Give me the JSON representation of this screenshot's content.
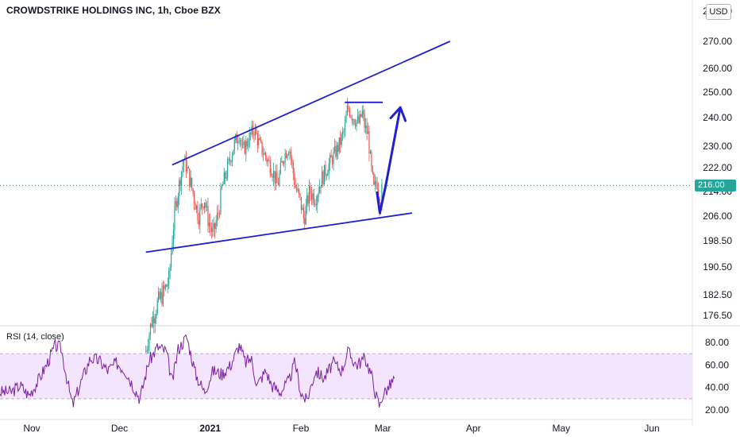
{
  "header": {
    "title": "CROWDSTRIKE HOLDINGS INC, 1h, Cboe BZX",
    "currency": "USD"
  },
  "price_tag": "216.00",
  "rsi": {
    "label": "RSI (14, close)"
  },
  "colors": {
    "up": "#26a69a",
    "down": "#ef5350",
    "drawing": "#1f1fd1",
    "rsi_line": "#7b1fa2",
    "rsi_band": "#f3e5fd"
  },
  "chart_data": [
    {
      "type": "candlestick",
      "title": "CROWDSTRIKE HOLDINGS INC, 1h, Cboe BZX",
      "x_ticks": [
        "Nov",
        "Dec",
        "2021",
        "Feb",
        "Mar",
        "Apr",
        "May",
        "Jun"
      ],
      "y_ticks": [
        "280.00",
        "270.00",
        "260.00",
        "250.00",
        "240.00",
        "230.00",
        "222.00",
        "214.00",
        "206.00",
        "198.50",
        "190.50",
        "182.50",
        "176.50"
      ],
      "last_price": 216.0,
      "price_path": [
        [
          "2020-12-10",
          166
        ],
        [
          "2020-12-12",
          175
        ],
        [
          "2020-12-14",
          180
        ],
        [
          "2020-12-16",
          183
        ],
        [
          "2020-12-18",
          187
        ],
        [
          "2020-12-19",
          199
        ],
        [
          "2020-12-20",
          208
        ],
        [
          "2020-12-21",
          214
        ],
        [
          "2020-12-22",
          220
        ],
        [
          "2020-12-23",
          225
        ],
        [
          "2020-12-24",
          222
        ],
        [
          "2020-12-26",
          214
        ],
        [
          "2020-12-28",
          206
        ],
        [
          "2020-12-30",
          212
        ],
        [
          "2020-12-31",
          206
        ],
        [
          "2021-01-02",
          200
        ],
        [
          "2021-01-04",
          208
        ],
        [
          "2021-01-05",
          215
        ],
        [
          "2021-01-07",
          222
        ],
        [
          "2021-01-09",
          230
        ],
        [
          "2021-01-11",
          235
        ],
        [
          "2021-01-12",
          228
        ],
        [
          "2021-01-14",
          232
        ],
        [
          "2021-01-16",
          236
        ],
        [
          "2021-01-18",
          230
        ],
        [
          "2021-01-20",
          226
        ],
        [
          "2021-01-22",
          222
        ],
        [
          "2021-01-24",
          216
        ],
        [
          "2021-01-26",
          226
        ],
        [
          "2021-01-28",
          230
        ],
        [
          "2021-01-30",
          216
        ],
        [
          "2021-02-01",
          210
        ],
        [
          "2021-02-02",
          205
        ],
        [
          "2021-02-04",
          214
        ],
        [
          "2021-02-06",
          212
        ],
        [
          "2021-02-08",
          218
        ],
        [
          "2021-02-10",
          222
        ],
        [
          "2021-02-12",
          226
        ],
        [
          "2021-02-14",
          230
        ],
        [
          "2021-02-16",
          236
        ],
        [
          "2021-02-17",
          244
        ],
        [
          "2021-02-19",
          240
        ],
        [
          "2021-02-21",
          238
        ],
        [
          "2021-02-22",
          242
        ],
        [
          "2021-02-23",
          236
        ],
        [
          "2021-02-24",
          234
        ],
        [
          "2021-02-25",
          222
        ],
        [
          "2021-02-26",
          214
        ],
        [
          "2021-02-27",
          218
        ],
        [
          "2021-02-28",
          210
        ],
        [
          "2021-03-01",
          216
        ]
      ],
      "drawings": [
        {
          "name": "upper-trendline",
          "points": [
            [
              "2020-12-19",
              223
            ],
            [
              "2021-03-24",
              270
            ]
          ]
        },
        {
          "name": "lower-trendline",
          "points": [
            [
              "2020-12-10",
              195
            ],
            [
              "2021-03-11",
              207
            ]
          ]
        },
        {
          "name": "horizontal-resistance",
          "points": [
            [
              "2021-02-16",
              246
            ],
            [
              "2021-03-01",
              246
            ]
          ]
        },
        {
          "name": "projection-path",
          "points": [
            [
              "2021-02-27",
              214
            ],
            [
              "2021-02-28",
              207
            ],
            [
              "2021-03-02",
              216
            ],
            [
              "2021-03-07",
              244
            ]
          ],
          "arrow": true
        }
      ]
    },
    {
      "type": "line",
      "title": "RSI (14, close)",
      "y_ticks": [
        "80.00",
        "60.00",
        "40.00",
        "20.00"
      ],
      "band": [
        30,
        70
      ],
      "series": [
        {
          "values": [
            [
              "2020-10-25",
              36
            ],
            [
              "2020-10-28",
              42
            ],
            [
              "2020-10-31",
              33
            ],
            [
              "2020-11-03",
              45
            ],
            [
              "2020-11-06",
              60
            ],
            [
              "2020-11-09",
              77
            ],
            [
              "2020-11-11",
              75
            ],
            [
              "2020-11-14",
              35
            ],
            [
              "2020-11-15",
              24
            ],
            [
              "2020-11-18",
              46
            ],
            [
              "2020-11-21",
              66
            ],
            [
              "2020-11-24",
              64
            ],
            [
              "2020-11-27",
              55
            ],
            [
              "2020-11-30",
              62
            ],
            [
              "2020-12-03",
              55
            ],
            [
              "2020-12-06",
              40
            ],
            [
              "2020-12-08",
              30
            ],
            [
              "2020-12-11",
              63
            ],
            [
              "2020-12-14",
              76
            ],
            [
              "2020-12-17",
              72
            ],
            [
              "2020-12-19",
              44
            ],
            [
              "2020-12-21",
              74
            ],
            [
              "2020-12-24",
              85
            ],
            [
              "2020-12-27",
              52
            ],
            [
              "2020-12-30",
              36
            ],
            [
              "2021-01-02",
              55
            ],
            [
              "2021-01-05",
              52
            ],
            [
              "2021-01-08",
              60
            ],
            [
              "2021-01-11",
              78
            ],
            [
              "2021-01-13",
              62
            ],
            [
              "2021-01-15",
              66
            ],
            [
              "2021-01-17",
              42
            ],
            [
              "2021-01-20",
              55
            ],
            [
              "2021-01-22",
              42
            ],
            [
              "2021-01-25",
              36
            ],
            [
              "2021-01-28",
              46
            ],
            [
              "2021-01-30",
              63
            ],
            [
              "2021-02-01",
              35
            ],
            [
              "2021-02-03",
              28
            ],
            [
              "2021-02-06",
              55
            ],
            [
              "2021-02-09",
              48
            ],
            [
              "2021-02-12",
              62
            ],
            [
              "2021-02-15",
              55
            ],
            [
              "2021-02-17",
              72
            ],
            [
              "2021-02-20",
              60
            ],
            [
              "2021-02-23",
              66
            ],
            [
              "2021-02-25",
              52
            ],
            [
              "2021-02-27",
              30
            ],
            [
              "2021-02-28",
              23
            ],
            [
              "2021-03-01",
              34
            ],
            [
              "2021-03-03",
              40
            ],
            [
              "2021-03-05",
              48
            ]
          ]
        }
      ]
    }
  ]
}
